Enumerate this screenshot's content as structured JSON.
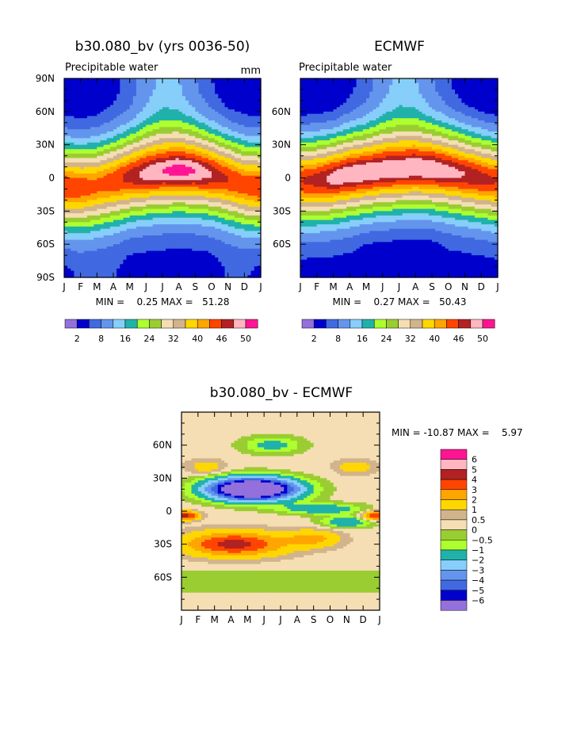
{
  "page": {
    "palette": [
      "#9370db",
      "#0000cd",
      "#4169e1",
      "#6495ed",
      "#87cefa",
      "#20b2aa",
      "#adff2f",
      "#9acd32",
      "#f5deb3",
      "#d2b48c",
      "#ffd700",
      "#ffa500",
      "#ff4500",
      "#b22222",
      "#ffb6c1",
      "#ff1493"
    ]
  },
  "chart_data": [
    {
      "type": "heatmap",
      "panel": "model",
      "title": "b30.080_bv (yrs 0036-50)",
      "subtitle": "Precipitable water",
      "units": "mm",
      "months": [
        "J",
        "F",
        "M",
        "A",
        "M",
        "J",
        "J",
        "A",
        "S",
        "O",
        "N",
        "D",
        "J"
      ],
      "y_ticks": [
        "90N",
        "60N",
        "30N",
        "0",
        "30S",
        "60S",
        "90S"
      ],
      "ylim": [
        -90,
        90
      ],
      "stats": "MIN =    0.25 MAX =   51.28",
      "colorbar_levels": [
        "2",
        "8",
        "16",
        "24",
        "32",
        "40",
        "46",
        "50"
      ],
      "itcz_lat": [
        -8,
        -9,
        -7,
        -3,
        1,
        4,
        6,
        7,
        6,
        3,
        -1,
        -6,
        -8
      ],
      "peak_pw": [
        46,
        45,
        44,
        45,
        47,
        49,
        50,
        51,
        50,
        48,
        46,
        45,
        46
      ],
      "polar_pw": {
        "north": [
          3,
          3,
          3,
          4,
          6,
          10,
          13,
          12,
          8,
          5,
          3,
          3,
          3
        ],
        "south": [
          4,
          5,
          5,
          5,
          4,
          4,
          4,
          4,
          4,
          4,
          5,
          5,
          4
        ]
      }
    },
    {
      "type": "heatmap",
      "panel": "observed",
      "title": "ECMWF",
      "subtitle": "Precipitable water",
      "months": [
        "J",
        "F",
        "M",
        "A",
        "M",
        "J",
        "J",
        "A",
        "S",
        "O",
        "N",
        "D",
        "J"
      ],
      "y_ticks": [
        "60N",
        "30N",
        "0",
        "30S",
        "60S"
      ],
      "ylim": [
        -90,
        90
      ],
      "stats": "MIN =    0.27 MAX =   50.43",
      "colorbar_levels": [
        "2",
        "8",
        "16",
        "24",
        "32",
        "40",
        "46",
        "50"
      ],
      "itcz_lat": [
        -3,
        -2,
        0,
        3,
        5,
        7,
        8,
        9,
        8,
        6,
        3,
        0,
        -3
      ],
      "peak_pw": [
        46,
        47,
        49,
        50,
        50,
        50,
        50,
        50,
        50,
        49,
        48,
        47,
        46
      ],
      "polar_pw": {
        "north": [
          2,
          2,
          2,
          4,
          6,
          10,
          13,
          12,
          8,
          5,
          3,
          2,
          2
        ],
        "south": [
          4,
          4,
          4,
          4,
          3,
          3,
          3,
          3,
          3,
          4,
          4,
          4,
          4
        ]
      }
    },
    {
      "type": "heatmap",
      "panel": "difference",
      "title": "b30.080_bv - ECMWF",
      "months": [
        "J",
        "F",
        "M",
        "A",
        "M",
        "J",
        "J",
        "A",
        "S",
        "O",
        "N",
        "D",
        "J"
      ],
      "y_ticks": [
        "60N",
        "30N",
        "0",
        "30S",
        "60S"
      ],
      "ylim": [
        -90,
        90
      ],
      "stats": "MIN = -10.87 MAX =    5.97",
      "colorbar_levels": [
        "6",
        "5",
        "4",
        "3",
        "2",
        "1",
        "0.5",
        "0",
        "-0.5",
        "-1",
        "-2",
        "-3",
        "-4",
        "-5",
        "-6"
      ],
      "diff_colors": [
        "#ff1493",
        "#ffb6c1",
        "#b22222",
        "#ff4500",
        "#ffa500",
        "#ffd700",
        "#d2b48c",
        "#f5deb3",
        "#9acd32",
        "#adff2f",
        "#20b2aa",
        "#87cefa",
        "#6495ed",
        "#4169e1",
        "#0000cd",
        "#9370db"
      ]
    }
  ]
}
